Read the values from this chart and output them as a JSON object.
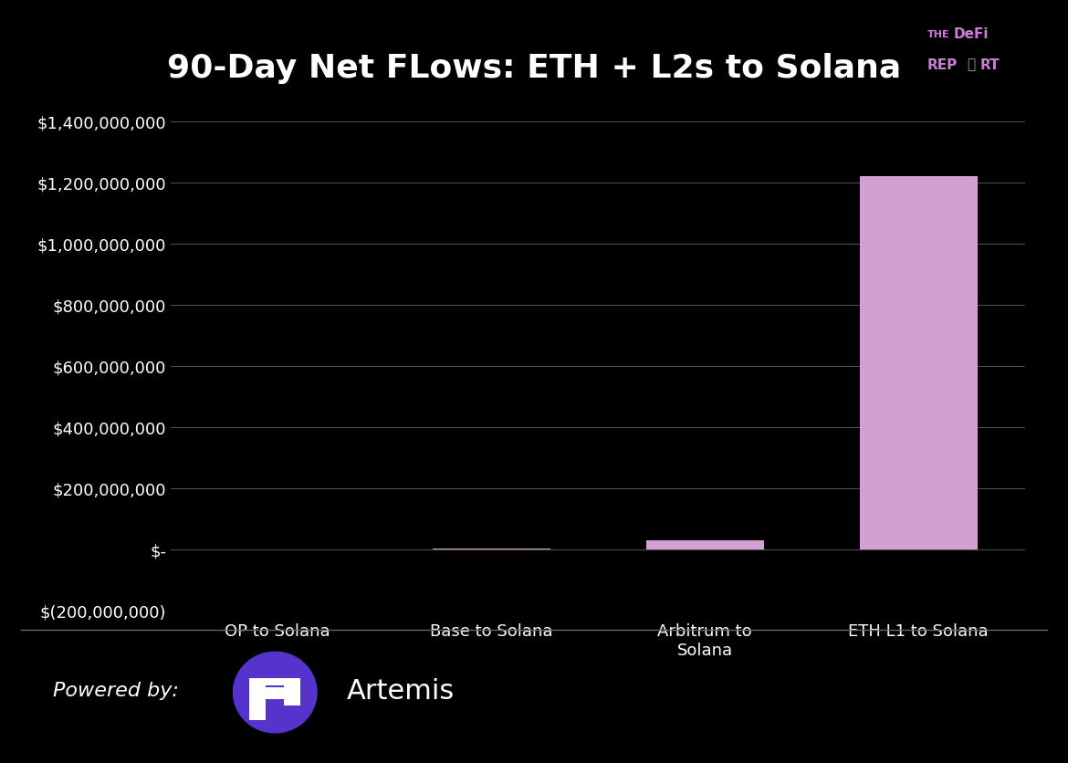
{
  "title": "90-Day Net FLows: ETH + L2s to Solana",
  "categories": [
    "OP to Solana",
    "Base to Solana",
    "Arbitrum to\nSolana",
    "ETH L1 to Solana"
  ],
  "values": [
    0,
    2000000,
    30000000,
    1220000000
  ],
  "bar_color": "#d4a0d4",
  "background_color": "#000000",
  "text_color": "#ffffff",
  "grid_color": "#555555",
  "ylim": [
    -200000000,
    1400000000
  ],
  "yticks": [
    -200000000,
    0,
    200000000,
    400000000,
    600000000,
    800000000,
    1000000000,
    1200000000,
    1400000000
  ],
  "ytick_labels": [
    "$(200,000,000)",
    "$-",
    "$200,000,000",
    "$400,000,000",
    "$600,000,000",
    "$800,000,000",
    "$1,000,000,000",
    "$1,200,000,000",
    "$1,400,000,000"
  ],
  "title_fontsize": 26,
  "tick_fontsize": 13,
  "defi_report_color": "#c97fd4",
  "powered_by_text": "Powered by:",
  "artemis_text": "Artemis",
  "artemis_circle_color": "#5533cc",
  "separator_color": "#666666"
}
